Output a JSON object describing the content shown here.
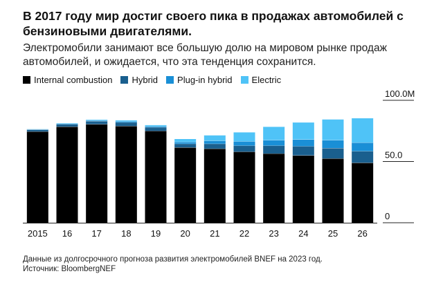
{
  "title": "В 2017 году мир достиг своего пика в продажах автомобилей с бензиновыми двигателями.",
  "subtitle": "Электромобили занимают все большую долю на мировом рынке продаж автомобилей, и ожидается, что эта тенденция сохранится.",
  "footer": {
    "note": "Данные из долгосрочного прогноза развития электромобилей BNEF на 2023 год.",
    "source": "Источник: BloombergNEF"
  },
  "chart_data": {
    "type": "bar",
    "stacked": true,
    "categories": [
      "2015",
      "16",
      "17",
      "18",
      "19",
      "20",
      "21",
      "22",
      "23",
      "24",
      "25",
      "26"
    ],
    "series": [
      {
        "name": "Internal combustion",
        "color": "#000000",
        "values": [
          74.5,
          78.5,
          80.5,
          79.0,
          75.0,
          61.5,
          60.5,
          58.0,
          56.5,
          55.0,
          52.5,
          49.0
        ]
      },
      {
        "name": "Hybrid",
        "color": "#1a5f8e",
        "values": [
          1.5,
          2.0,
          2.5,
          3.0,
          3.0,
          3.0,
          4.0,
          5.0,
          6.5,
          7.5,
          8.5,
          9.5
        ]
      },
      {
        "name": "Plug-in hybrid",
        "color": "#1a8fd6",
        "values": [
          0.3,
          0.5,
          0.6,
          0.8,
          0.7,
          1.5,
          2.5,
          3.5,
          4.5,
          5.5,
          6.5,
          7.0
        ]
      },
      {
        "name": "Electric",
        "color": "#4fc3f7",
        "values": [
          0.3,
          0.5,
          0.7,
          1.0,
          1.2,
          2.5,
          4.5,
          7.5,
          11.0,
          14.0,
          17.0,
          20.0
        ]
      }
    ],
    "ylim": [
      0,
      100
    ],
    "yticks": [
      0,
      50,
      100
    ],
    "ytick_labels": [
      "0",
      "50.0",
      "100.0M"
    ],
    "grid": false,
    "legend_position": "top-left"
  }
}
